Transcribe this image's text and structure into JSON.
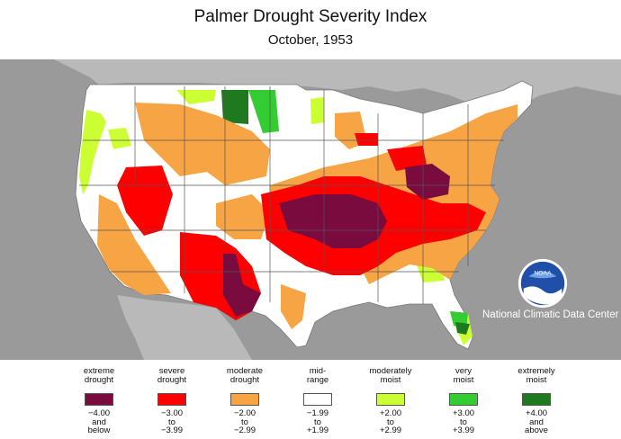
{
  "title": "Palmer Drought Severity Index",
  "subtitle": "October, 1953",
  "credit": "National Climatic Data Center",
  "logo": {
    "icon": "noaa-logo-icon",
    "text": "NOAA"
  },
  "colors": {
    "background": "#9a9a9a",
    "land": "#ffffff",
    "extreme_drought": "#7a0b3f",
    "severe_drought": "#ff0000",
    "moderate_drought": "#f7a444",
    "mid_range": "#ffffff",
    "moderately_moist": "#ccff33",
    "very_moist": "#33cc33",
    "extremely_moist": "#1f7a1f"
  },
  "legend": [
    {
      "label_1": "extreme",
      "label_2": "drought",
      "range_1": "−4.00",
      "range_2": "and",
      "range_3": "below",
      "color": "#7a0b3f"
    },
    {
      "label_1": "severe",
      "label_2": "drought",
      "range_1": "−3.00",
      "range_2": "to",
      "range_3": "−3.99",
      "color": "#ff0000"
    },
    {
      "label_1": "moderate",
      "label_2": "drought",
      "range_1": "−2.00",
      "range_2": "to",
      "range_3": "−2.99",
      "color": "#f7a444"
    },
    {
      "label_1": "mid-",
      "label_2": "range",
      "range_1": "−1.99",
      "range_2": "to",
      "range_3": "+1.99",
      "color": "#ffffff"
    },
    {
      "label_1": "moderately",
      "label_2": "moist",
      "range_1": "+2.00",
      "range_2": "to",
      "range_3": "+2.99",
      "color": "#ccff33"
    },
    {
      "label_1": "very",
      "label_2": "moist",
      "range_1": "+3.00",
      "range_2": "to",
      "range_3": "+3.99",
      "color": "#33cc33"
    },
    {
      "label_1": "extremely",
      "label_2": "moist",
      "range_1": "+4.00",
      "range_2": "and",
      "range_3": "above",
      "color": "#1f7a1f"
    }
  ]
}
